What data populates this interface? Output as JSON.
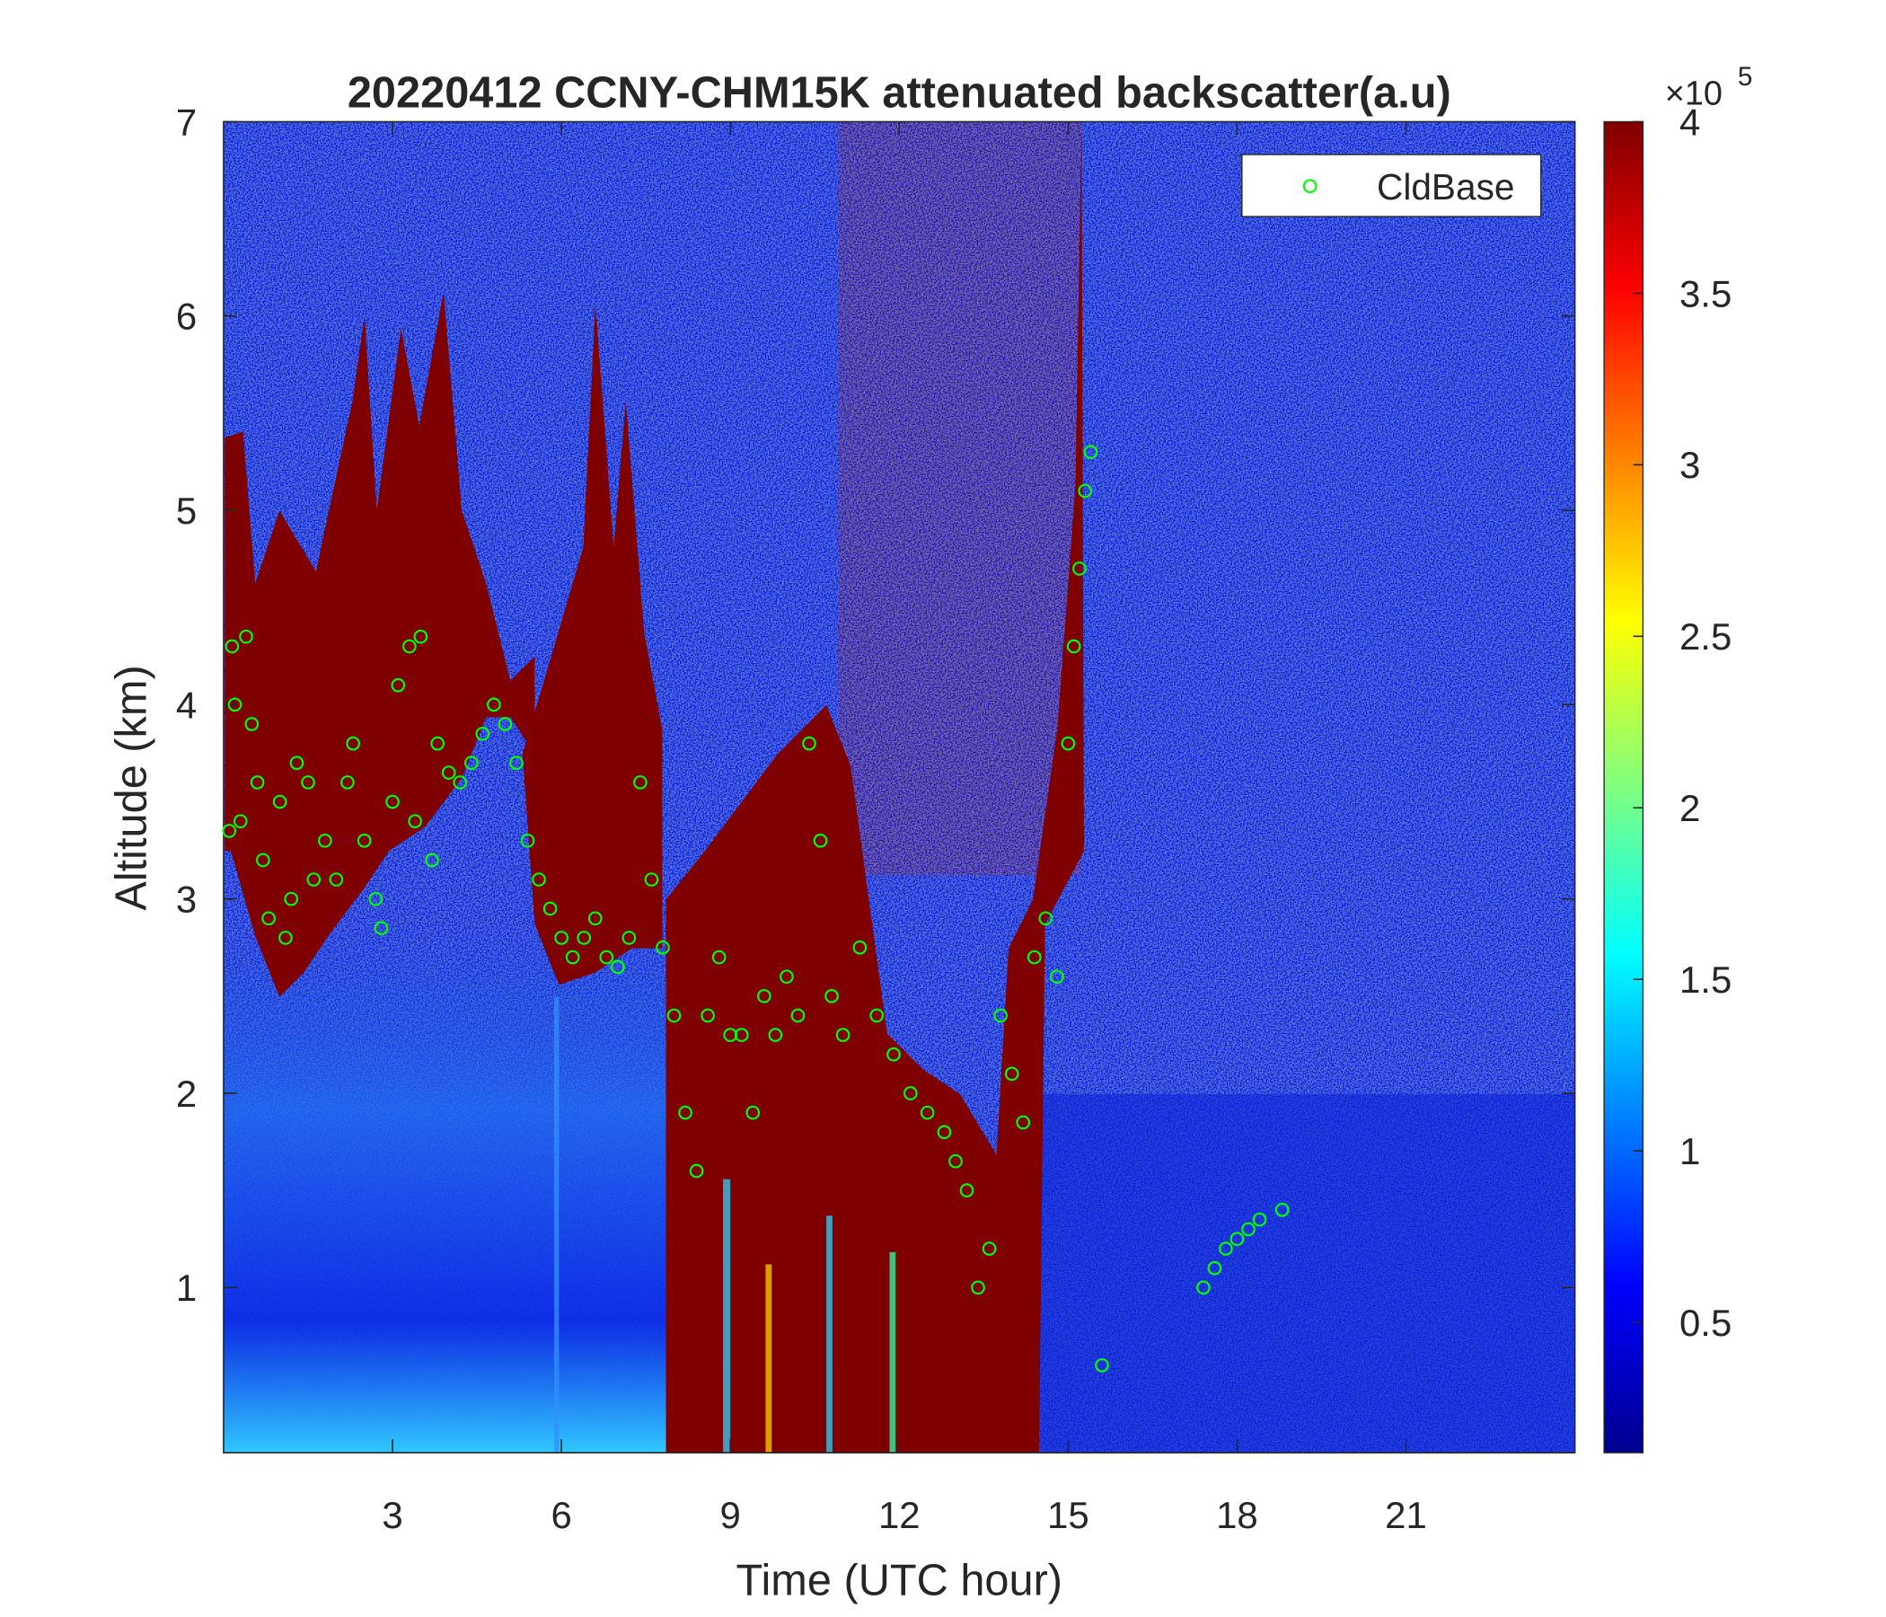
{
  "chart_data": {
    "type": "scatter",
    "title": "20220412 CCNY-CHM15K attenuated backscatter(a.u)",
    "x_label": "Time (UTC hour)",
    "y_label": "Altitude (km)",
    "xlim": [
      0,
      24
    ],
    "xticks": [
      3,
      6,
      9,
      12,
      15,
      18,
      21
    ],
    "ylim": [
      0.15,
      7
    ],
    "yticks": [
      1,
      2,
      3,
      4,
      5,
      6,
      7
    ],
    "legend": "upper right",
    "series": [
      {
        "name": "CldBase",
        "color": "#00ff00",
        "x": [
          0.1,
          0.15,
          0.2,
          0.3,
          0.4,
          0.5,
          0.6,
          0.7,
          0.8,
          1.0,
          1.1,
          1.2,
          1.3,
          1.5,
          1.6,
          1.8,
          2.0,
          2.2,
          2.3,
          2.5,
          2.7,
          2.8,
          3.0,
          3.1,
          3.3,
          3.4,
          3.5,
          3.7,
          3.8,
          4.0,
          4.2,
          4.4,
          4.6,
          4.8,
          5.0,
          5.2,
          5.4,
          5.6,
          5.8,
          6.0,
          6.2,
          6.4,
          6.6,
          6.8,
          7.0,
          7.2,
          7.4,
          7.6,
          7.8,
          8.0,
          8.2,
          8.4,
          8.6,
          8.8,
          9.0,
          9.2,
          9.4,
          9.6,
          9.8,
          10.0,
          10.2,
          10.4,
          10.6,
          10.8,
          11.0,
          11.3,
          11.6,
          11.9,
          12.2,
          12.5,
          12.8,
          13.0,
          13.2,
          13.4,
          13.6,
          13.8,
          14.0,
          14.2,
          14.4,
          14.6,
          14.8,
          15.0,
          15.1,
          15.2,
          15.3,
          15.4,
          15.6,
          17.4,
          17.6,
          17.8,
          18.0,
          18.2,
          18.4,
          18.8
        ],
        "values": [
          3.35,
          4.3,
          4.0,
          3.4,
          4.35,
          3.9,
          3.6,
          3.2,
          2.9,
          3.5,
          2.8,
          3.0,
          3.7,
          3.6,
          3.1,
          3.3,
          3.1,
          3.6,
          3.8,
          3.3,
          3.0,
          2.85,
          3.5,
          4.1,
          4.3,
          3.4,
          4.35,
          3.2,
          3.8,
          3.65,
          3.6,
          3.7,
          3.85,
          4.0,
          3.9,
          3.7,
          3.3,
          3.1,
          2.95,
          2.8,
          2.7,
          2.8,
          2.9,
          2.7,
          2.65,
          2.8,
          3.6,
          3.1,
          2.75,
          2.4,
          1.9,
          1.6,
          2.4,
          2.7,
          2.3,
          2.3,
          1.9,
          2.5,
          2.3,
          2.6,
          2.4,
          3.8,
          3.3,
          2.5,
          2.3,
          2.75,
          2.4,
          2.2,
          2.0,
          1.9,
          1.8,
          1.65,
          1.5,
          1.0,
          1.2,
          2.4,
          2.1,
          1.85,
          2.7,
          2.9,
          2.6,
          3.8,
          4.3,
          4.7,
          5.1,
          5.3,
          0.6,
          1.0,
          1.1,
          1.2,
          1.25,
          1.3,
          1.35,
          1.4
        ]
      }
    ],
    "colorbar": {
      "colormap": "jet",
      "clim": [
        0.12,
        4
      ],
      "ticks": [
        0.5,
        1,
        1.5,
        2,
        2.5,
        3,
        3.5,
        4
      ],
      "multiplier": "×10",
      "exponent": "5"
    }
  }
}
